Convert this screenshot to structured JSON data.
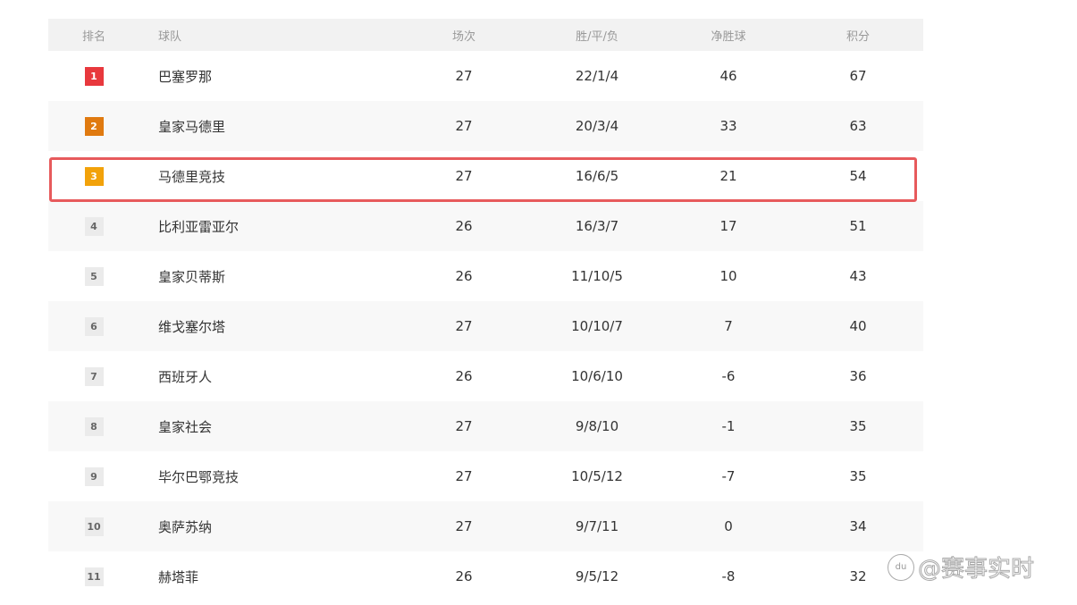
{
  "header": {
    "rank": "排名",
    "team": "球队",
    "played": "场次",
    "record": "胜/平/负",
    "gd": "净胜球",
    "points": "积分"
  },
  "badge_colors": {
    "1": "#e8383d",
    "2": "#e07a10",
    "3": "#f2a20a",
    "default": "#ebebeb"
  },
  "highlight_color": "#e75a5c",
  "rows": [
    {
      "rank": "1",
      "team": "巴塞罗那",
      "played": "27",
      "record": "22/1/4",
      "gd": "46",
      "points": "67"
    },
    {
      "rank": "2",
      "team": "皇家马德里",
      "played": "27",
      "record": "20/3/4",
      "gd": "33",
      "points": "63"
    },
    {
      "rank": "3",
      "team": "马德里竞技",
      "played": "27",
      "record": "16/6/5",
      "gd": "21",
      "points": "54"
    },
    {
      "rank": "4",
      "team": "比利亚雷亚尔",
      "played": "26",
      "record": "16/3/7",
      "gd": "17",
      "points": "51"
    },
    {
      "rank": "5",
      "team": "皇家贝蒂斯",
      "played": "26",
      "record": "11/10/5",
      "gd": "10",
      "points": "43"
    },
    {
      "rank": "6",
      "team": "维戈塞尔塔",
      "played": "27",
      "record": "10/10/7",
      "gd": "7",
      "points": "40"
    },
    {
      "rank": "7",
      "team": "西班牙人",
      "played": "26",
      "record": "10/6/10",
      "gd": "-6",
      "points": "36"
    },
    {
      "rank": "8",
      "team": "皇家社会",
      "played": "27",
      "record": "9/8/10",
      "gd": "-1",
      "points": "35"
    },
    {
      "rank": "9",
      "team": "毕尔巴鄂竞技",
      "played": "27",
      "record": "10/5/12",
      "gd": "-7",
      "points": "35"
    },
    {
      "rank": "10",
      "team": "奥萨苏纳",
      "played": "27",
      "record": "9/7/11",
      "gd": "0",
      "points": "34"
    },
    {
      "rank": "11",
      "team": "赫塔菲",
      "played": "26",
      "record": "9/5/12",
      "gd": "-8",
      "points": "32"
    }
  ],
  "watermark": {
    "logo": "du",
    "text": "@赛事实时"
  }
}
